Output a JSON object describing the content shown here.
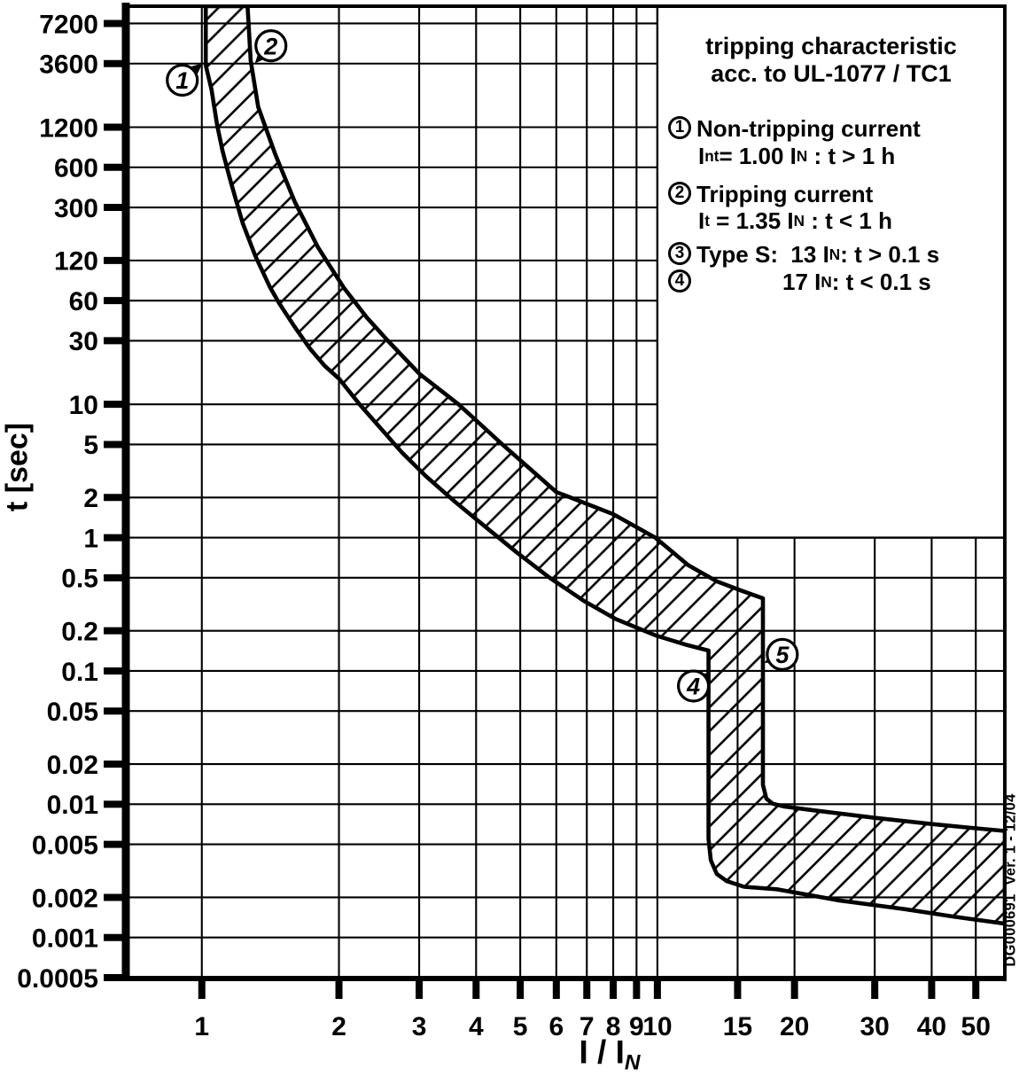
{
  "chart_data": {
    "type": "area",
    "title": "tripping characteristic acc. to UL-1077 / TC1",
    "xlabel": "I / IN",
    "ylabel": "t [sec]",
    "x_scale": "log",
    "y_scale": "log",
    "xlim": [
      0.678,
      57.9
    ],
    "ylim": [
      0.0005,
      9700
    ],
    "grid": "solid black gridlines at every labeled tick, both axes",
    "legend_position": "top-right white box",
    "x_ticks": [
      {
        "label": "1",
        "value": 1
      },
      {
        "label": "2",
        "value": 2
      },
      {
        "label": "3",
        "value": 3
      },
      {
        "label": "4",
        "value": 4
      },
      {
        "label": "5",
        "value": 5
      },
      {
        "label": "6",
        "value": 6
      },
      {
        "label": "7",
        "value": 7
      },
      {
        "label": "8",
        "value": 8
      },
      {
        "label": "9",
        "value": 9
      },
      {
        "label": "10",
        "value": 10
      },
      {
        "label": "15",
        "value": 15
      },
      {
        "label": "20",
        "value": 20
      },
      {
        "label": "30",
        "value": 30
      },
      {
        "label": "40",
        "value": 40
      },
      {
        "label": "50",
        "value": 50
      }
    ],
    "y_ticks": [
      {
        "label": "7200",
        "value": 7200
      },
      {
        "label": "3600",
        "value": 3600
      },
      {
        "label": "1200",
        "value": 1200
      },
      {
        "label": "600",
        "value": 600
      },
      {
        "label": "300",
        "value": 300
      },
      {
        "label": "120",
        "value": 120
      },
      {
        "label": "60",
        "value": 60
      },
      {
        "label": "30",
        "value": 30
      },
      {
        "label": "10",
        "value": 10
      },
      {
        "label": "5",
        "value": 5
      },
      {
        "label": "2",
        "value": 2
      },
      {
        "label": "1",
        "value": 1
      },
      {
        "label": "0.5",
        "value": 0.5
      },
      {
        "label": "0.2",
        "value": 0.2
      },
      {
        "label": "0.1",
        "value": 0.1
      },
      {
        "label": "0.05",
        "value": 0.05
      },
      {
        "label": "0.02",
        "value": 0.02
      },
      {
        "label": "0.01",
        "value": 0.01
      },
      {
        "label": "0.005",
        "value": 0.005
      },
      {
        "label": "0.002",
        "value": 0.002
      },
      {
        "label": "0.001",
        "value": 0.001
      },
      {
        "label": "0.0005",
        "value": 0.0005
      }
    ],
    "band": {
      "name": "tripping tolerance band (45deg hatched)",
      "lower_boundary": [
        [
          1.02,
          9700
        ],
        [
          1.02,
          3500
        ],
        [
          1.05,
          2300
        ],
        [
          1.08,
          1250
        ],
        [
          1.11,
          800
        ],
        [
          1.15,
          505
        ],
        [
          1.19,
          335
        ],
        [
          1.23,
          228
        ],
        [
          1.31,
          130
        ],
        [
          1.41,
          76
        ],
        [
          1.48,
          57
        ],
        [
          1.6,
          38
        ],
        [
          1.73,
          26
        ],
        [
          1.86,
          19.5
        ],
        [
          2.0,
          15.6
        ],
        [
          2.22,
          10
        ],
        [
          2.5,
          6.3
        ],
        [
          2.75,
          4.35
        ],
        [
          3.1,
          2.9
        ],
        [
          3.6,
          1.85
        ],
        [
          4.2,
          1.2
        ],
        [
          4.9,
          0.78
        ],
        [
          5.8,
          0.5
        ],
        [
          6.9,
          0.335
        ],
        [
          8.1,
          0.245
        ],
        [
          9.9,
          0.185
        ],
        [
          11.5,
          0.158
        ],
        [
          12.95,
          0.142
        ],
        [
          12.95,
          0.0055
        ],
        [
          13.1,
          0.0038
        ],
        [
          13.5,
          0.003
        ],
        [
          14.2,
          0.00265
        ],
        [
          15.5,
          0.0024
        ],
        [
          18.3,
          0.0023
        ],
        [
          25,
          0.0019
        ],
        [
          35,
          0.00163
        ],
        [
          45,
          0.00143
        ],
        [
          57.9,
          0.00127
        ]
      ],
      "upper_boundary": [
        [
          1.26,
          9700
        ],
        [
          1.28,
          3800
        ],
        [
          1.33,
          1700
        ],
        [
          1.45,
          750
        ],
        [
          1.6,
          330
        ],
        [
          1.8,
          150
        ],
        [
          2.05,
          75
        ],
        [
          2.3,
          45
        ],
        [
          2.56,
          30
        ],
        [
          3.0,
          17
        ],
        [
          3.66,
          10
        ],
        [
          4.6,
          4.9
        ],
        [
          6.0,
          2.2
        ],
        [
          8.0,
          1.5
        ],
        [
          9.9,
          1.0
        ],
        [
          11.7,
          0.62
        ],
        [
          13.5,
          0.47
        ],
        [
          15.3,
          0.4
        ],
        [
          17.05,
          0.35
        ],
        [
          17.05,
          0.014
        ],
        [
          17.35,
          0.011
        ],
        [
          17.9,
          0.0101
        ],
        [
          19,
          0.0096
        ],
        [
          22,
          0.009
        ],
        [
          30,
          0.0079
        ],
        [
          40,
          0.0071
        ],
        [
          50,
          0.0066
        ],
        [
          57.9,
          0.0063
        ]
      ]
    },
    "annotations": [
      {
        "num": "1",
        "circle": [
          0.906,
          2700
        ],
        "tip": [
          1.004,
          3620
        ]
      },
      {
        "num": "2",
        "circle": [
          1.418,
          4900
        ],
        "tip": [
          1.308,
          3620
        ]
      },
      {
        "num": "4",
        "circle": [
          12.0,
          0.077
        ],
        "tip": [
          13.0,
          0.098
        ]
      },
      {
        "num": "5",
        "circle": [
          18.8,
          0.133
        ],
        "tip": [
          17.15,
          0.115
        ]
      }
    ]
  },
  "legend": {
    "title_line1": "tripping characteristic",
    "title_line2": "acc. to UL-1077 / TC1",
    "rows": [
      {
        "circle": "1",
        "indent": 0,
        "segments": [
          {
            "t": "Non-tripping current"
          }
        ]
      },
      {
        "circle": null,
        "indent": 1,
        "segments": [
          {
            "t": "I"
          },
          {
            "t": "nt",
            "sub": true
          },
          {
            "t": "= 1.00 I"
          },
          {
            "t": "N",
            "sub": true
          },
          {
            "t": " : t > 1 h"
          }
        ]
      },
      {
        "circle": "2",
        "indent": 0,
        "segments": [
          {
            "t": "Tripping current"
          }
        ]
      },
      {
        "circle": null,
        "indent": 1,
        "segments": [
          {
            "t": "I"
          },
          {
            "t": "t",
            "sub": true
          },
          {
            "t": " = 1.35 I"
          },
          {
            "t": "N",
            "sub": true
          },
          {
            "t": " : t < 1 h"
          }
        ]
      },
      {
        "circle": "3",
        "indent": 0,
        "segments": [
          {
            "t": "Type S:  13 I"
          },
          {
            "t": "N",
            "sub": true
          },
          {
            "t": ": t > 0.1 s"
          }
        ]
      },
      {
        "circle": "4",
        "indent": 2,
        "segments": [
          {
            "t": "17 I"
          },
          {
            "t": "N",
            "sub": true
          },
          {
            "t": ": t < 0.1 s"
          }
        ]
      }
    ]
  },
  "axes": {
    "ylabel": "t [sec]",
    "xlabel_segments": [
      {
        "t": "I / I"
      },
      {
        "t": "N",
        "sub": true,
        "italic": true
      }
    ]
  },
  "watermark": "DG000691  Ver. 1 - 12/04",
  "colors": {
    "ink": "#000000",
    "paper": "#ffffff"
  }
}
